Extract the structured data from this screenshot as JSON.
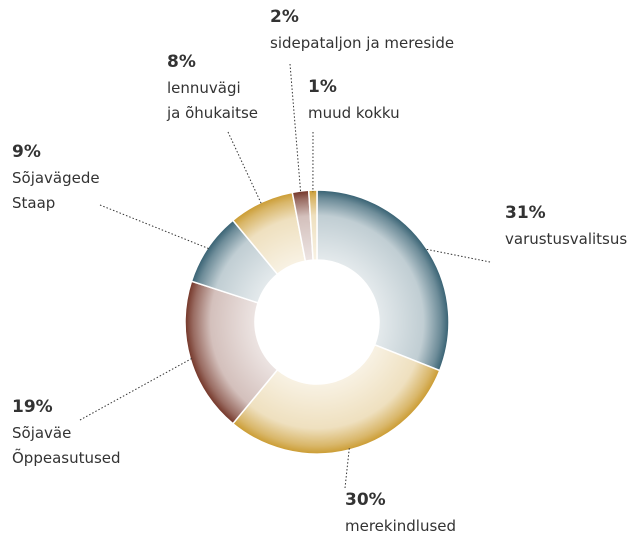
{
  "chart_data": {
    "type": "donut",
    "categories": [
      "varustusvalitsus",
      "merekindlused",
      "Sõjaväe\nÕppeasutused",
      "Sõjavägede\nStaap",
      "lennuvägi\nja õhukaitse",
      "sidepataljon ja mereside",
      "muud kokku"
    ],
    "values": [
      31,
      30,
      19,
      9,
      8,
      2,
      1
    ],
    "value_labels": [
      "31%",
      "30%",
      "19%",
      "9%",
      "8%",
      "2%",
      "1%"
    ],
    "colors": [
      "#2f5b6d",
      "#c9982a",
      "#6e2d1f",
      "#2f5b6d",
      "#c9982a",
      "#6e2d1f",
      "#c9982a"
    ]
  }
}
